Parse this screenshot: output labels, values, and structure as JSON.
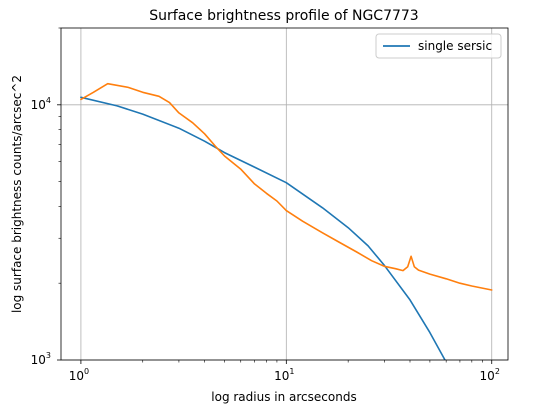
{
  "chart_data": {
    "type": "line",
    "title": "Surface brightness profile of NGC7773",
    "xlabel": "log radius in arcseconds",
    "ylabel": "log surface brightness counts/arcsec^2",
    "xscale": "log",
    "yscale": "log",
    "xlim": [
      0.8,
      120
    ],
    "ylim": [
      1000,
      20000
    ],
    "grid": true,
    "legend": {
      "placement": "top-right",
      "entries": [
        "single sersic"
      ]
    },
    "x_ticks": [
      {
        "value": 1,
        "base": "10",
        "exp": "0"
      },
      {
        "value": 10,
        "base": "10",
        "exp": "1"
      },
      {
        "value": 100,
        "base": "10",
        "exp": "2"
      }
    ],
    "y_ticks": [
      {
        "value": 1000,
        "base": "10",
        "exp": "3"
      },
      {
        "value": 10000,
        "base": "10",
        "exp": "4"
      }
    ],
    "series": [
      {
        "name": "single sersic",
        "color": "#1f77b4",
        "x": [
          1,
          1.5,
          2,
          3,
          4,
          5,
          7,
          10,
          15,
          20,
          25,
          30,
          40,
          50,
          60
        ],
        "y": [
          10700,
          9900,
          9200,
          8100,
          7200,
          6500,
          5700,
          4950,
          3950,
          3300,
          2800,
          2350,
          1720,
          1280,
          980
        ]
      },
      {
        "color": "#ff7f0e",
        "x": [
          1,
          1.15,
          1.35,
          1.7,
          2.0,
          2.4,
          2.7,
          3.0,
          3.5,
          4.0,
          4.5,
          5.0,
          6.0,
          7.0,
          8.0,
          9.0,
          10,
          12,
          15,
          18,
          22,
          26,
          30,
          34,
          37,
          39,
          40.5,
          42,
          44,
          50,
          60,
          70,
          80,
          100
        ],
        "y": [
          10500,
          11200,
          12100,
          11700,
          11200,
          10800,
          10200,
          9300,
          8500,
          7700,
          6900,
          6300,
          5600,
          4900,
          4500,
          4200,
          3850,
          3500,
          3150,
          2900,
          2650,
          2450,
          2330,
          2280,
          2240,
          2320,
          2550,
          2320,
          2250,
          2170,
          2080,
          2000,
          1950,
          1880
        ]
      }
    ]
  }
}
